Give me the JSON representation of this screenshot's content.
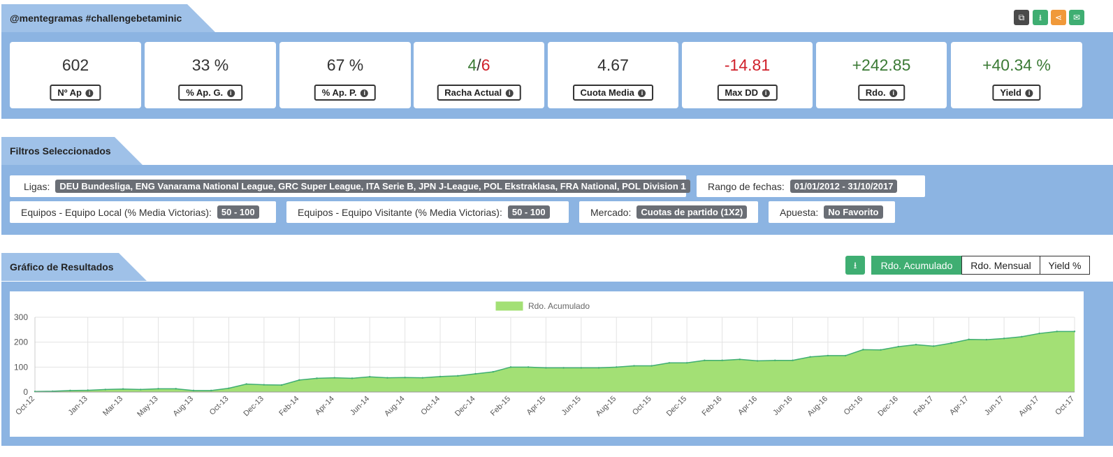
{
  "header": {
    "title": "@mentegramas #challengebetaminic",
    "icons": [
      "copy-icon",
      "download-icon",
      "share-icon",
      "email-icon"
    ]
  },
  "stats": [
    {
      "value": "602",
      "label": "Nº Ap"
    },
    {
      "value": "33 %",
      "label": "% Ap. G."
    },
    {
      "value": "67 %",
      "label": "% Ap. P."
    },
    {
      "value_win": "4",
      "value_sep": "/",
      "value_loss": "6",
      "label": "Racha Actual"
    },
    {
      "value": "4.67",
      "label": "Cuota Media"
    },
    {
      "value": "-14.81",
      "label": "Max DD"
    },
    {
      "value": "+242.85",
      "label": "Rdo."
    },
    {
      "value": "+40.34 %",
      "label": "Yield"
    }
  ],
  "filters": {
    "title": "Filtros Seleccionados",
    "items": [
      {
        "key": "Ligas:",
        "value": "DEU Bundesliga, ENG Vanarama National League, GRC Super League, ITA Serie B, JPN J-League, POL Ekstraklasa, FRA National, POL Division 1"
      },
      {
        "key": "Rango de fechas:",
        "value": "01/01/2012 - 31/10/2017"
      },
      {
        "key": "Equipos - Equipo Local (% Media Victorias):",
        "value": "50 - 100"
      },
      {
        "key": "Equipos - Equipo Visitante (% Media Victorias):",
        "value": "50 - 100"
      },
      {
        "key": "Mercado:",
        "value": "Cuotas de partido (1X2)"
      },
      {
        "key": "Apuesta:",
        "value": "No Favorito"
      }
    ]
  },
  "chart_section": {
    "title": "Gráfico de Resultados",
    "tabs": [
      "Rdo. Acumulado",
      "Rdo. Mensual",
      "Yield %"
    ],
    "active_tab": "Rdo. Acumulado"
  },
  "colors": {
    "accent": "#3fae72",
    "panel": "#8cb4e2",
    "area_fill": "#a3e075",
    "area_line": "#3fae72",
    "positive": "#3b7a35",
    "negative": "#d0212b"
  },
  "chart_data": {
    "type": "area",
    "title": "",
    "xlabel": "",
    "ylabel": "",
    "ylim": [
      0,
      300
    ],
    "yticks": [
      0,
      100,
      200,
      300
    ],
    "grid": true,
    "legend": "top-center",
    "x": [
      "Oct-12",
      "Nov-12",
      "Dec-12",
      "Jan-13",
      "Feb-13",
      "Mar-13",
      "Apr-13",
      "May-13",
      "Jun-13",
      "Aug-13",
      "Sep-13",
      "Oct-13",
      "Nov-13",
      "Dec-13",
      "Jan-14",
      "Feb-14",
      "Mar-14",
      "Apr-14",
      "May-14",
      "Jun-14",
      "Jul-14",
      "Aug-14",
      "Sep-14",
      "Oct-14",
      "Nov-14",
      "Dec-14",
      "Jan-15",
      "Feb-15",
      "Mar-15",
      "Apr-15",
      "May-15",
      "Jun-15",
      "Jul-15",
      "Aug-15",
      "Sep-15",
      "Oct-15",
      "Nov-15",
      "Dec-15",
      "Jan-16",
      "Feb-16",
      "Mar-16",
      "Apr-16",
      "May-16",
      "Jun-16",
      "Jul-16",
      "Aug-16",
      "Sep-16",
      "Oct-16",
      "Nov-16",
      "Dec-16",
      "Jan-17",
      "Feb-17",
      "Mar-17",
      "Apr-17",
      "May-17",
      "Jun-17",
      "Jul-17",
      "Aug-17",
      "Sep-17",
      "Oct-17"
    ],
    "xticks": [
      "Oct-12",
      "Jan-13",
      "Mar-13",
      "May-13",
      "Aug-13",
      "Oct-13",
      "Dec-13",
      "Feb-14",
      "Apr-14",
      "Jun-14",
      "Aug-14",
      "Oct-14",
      "Dec-14",
      "Feb-15",
      "Apr-15",
      "Jun-15",
      "Aug-15",
      "Oct-15",
      "Dec-15",
      "Feb-16",
      "Apr-16",
      "Jun-16",
      "Aug-16",
      "Oct-16",
      "Dec-16",
      "Feb-17",
      "Apr-17",
      "Jun-17",
      "Aug-17",
      "Oct-17"
    ],
    "series": [
      {
        "name": "Rdo. Acumulado",
        "values": [
          2,
          3,
          6,
          7,
          10,
          12,
          10,
          13,
          13,
          6,
          6,
          15,
          32,
          29,
          28,
          48,
          55,
          57,
          55,
          61,
          57,
          58,
          57,
          62,
          65,
          73,
          81,
          100,
          100,
          97,
          97,
          97,
          97,
          100,
          105,
          105,
          117,
          117,
          127,
          127,
          131,
          125,
          127,
          127,
          141,
          146,
          146,
          170,
          169,
          182,
          190,
          184,
          196,
          211,
          210,
          215,
          222,
          235,
          243,
          243
        ]
      }
    ]
  }
}
